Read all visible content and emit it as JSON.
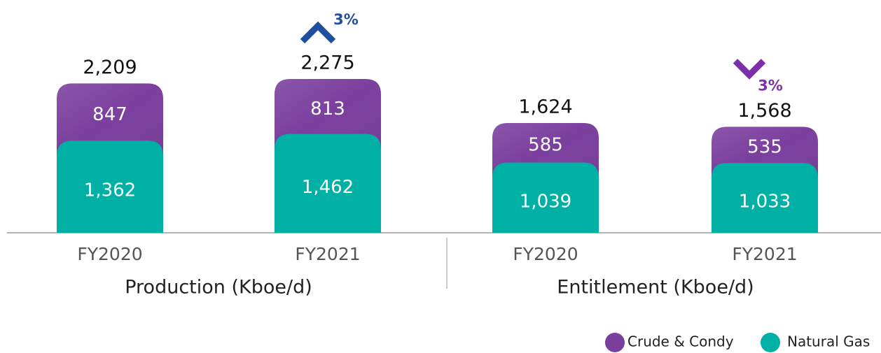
{
  "chart_data": {
    "type": "stacked_bar",
    "groups": [
      {
        "label": "Production (Kboe/d)",
        "categories": [
          "FY2020",
          "FY2021"
        ]
      },
      {
        "label": "Entitlement (Kboe/d)",
        "categories": [
          "FY2020",
          "FY2021"
        ]
      }
    ],
    "series": [
      {
        "name": "Natural Gas",
        "color": "#00b0a4",
        "values": [
          1362,
          1462,
          1039,
          1033
        ],
        "value_labels": [
          "1,362",
          "1,462",
          "1,039",
          "1,033"
        ]
      },
      {
        "name": "Crude & Condy",
        "color": "#7b3f9e",
        "values": [
          847,
          813,
          585,
          535
        ]
      }
    ],
    "totals": [
      2209,
      2275,
      1624,
      1568
    ],
    "total_labels": [
      "2,209",
      "2,275",
      "1,624",
      "1,568"
    ],
    "change_labels": [
      null,
      "3%",
      null,
      "3%"
    ],
    "change_directions": [
      null,
      "up",
      null,
      "down"
    ],
    "change_colors": [
      null,
      "#1f4e9c",
      null,
      "#7b2fa8"
    ]
  }
}
